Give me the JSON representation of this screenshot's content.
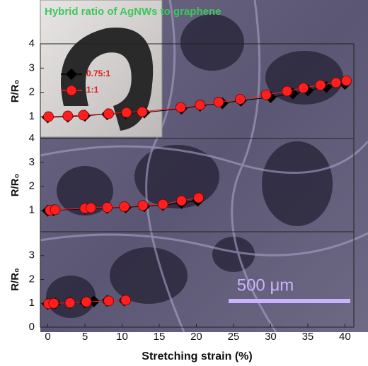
{
  "chart_data": [
    {
      "type": "scatter",
      "title": "Hybrid ratio of AgNWs to graphene",
      "ylabel": "R/R₀",
      "xlim": [
        -1,
        41.2
      ],
      "ylim": [
        0.1,
        4
      ],
      "yticks": [
        1,
        2,
        3,
        4
      ],
      "series": [
        {
          "name": "0.75:1",
          "color": "#000000",
          "marker": "diamond",
          "x": [
            0,
            2.7,
            5,
            8,
            10.5,
            13,
            18,
            20.5,
            23.5,
            26,
            30,
            33,
            35,
            37.5,
            40
          ],
          "values": [
            0.97,
            1.0,
            1.04,
            1.1,
            1.14,
            1.17,
            1.33,
            1.45,
            1.55,
            1.66,
            1.8,
            1.95,
            2.08,
            2.22,
            2.35
          ]
        },
        {
          "name": "1:1",
          "color": "#ff1f1f",
          "marker": "circle",
          "x": [
            0.1,
            2.7,
            4.8,
            8.2,
            10.6,
            12.7,
            17.9,
            20.5,
            23,
            25.9,
            29.4,
            32.2,
            34.4,
            36.7,
            38.8,
            40.2
          ],
          "values": [
            1.0,
            1.03,
            1.06,
            1.12,
            1.17,
            1.2,
            1.38,
            1.48,
            1.6,
            1.72,
            1.9,
            2.05,
            2.18,
            2.3,
            2.4,
            2.48
          ]
        }
      ]
    },
    {
      "type": "scatter",
      "ylabel": "R/R₀",
      "xlim": [
        -1,
        41.2
      ],
      "ylim": [
        0.1,
        4
      ],
      "yticks": [
        1,
        2,
        3,
        4
      ],
      "series": [
        {
          "color": "#000000",
          "marker": "diamond",
          "x": [
            0,
            0.8,
            5,
            8,
            10.5,
            13,
            15.5,
            18,
            20.2
          ],
          "values": [
            0.98,
            1.0,
            1.06,
            1.1,
            1.12,
            1.17,
            1.22,
            1.3,
            1.4
          ]
        },
        {
          "color": "#ff1f1f",
          "marker": "circle",
          "x": [
            0.3,
            1,
            5,
            5.8,
            8,
            10.3,
            12.8,
            15.5,
            18,
            20.3
          ],
          "values": [
            1.0,
            1.02,
            1.08,
            1.1,
            1.12,
            1.15,
            1.2,
            1.25,
            1.4,
            1.52
          ]
        }
      ]
    },
    {
      "type": "scatter",
      "ylabel": "R/R₀",
      "xlabel": "Stretching strain (%)",
      "annotation": "500 μm",
      "xlim": [
        -1,
        41.2
      ],
      "xticks": [
        0,
        5,
        10,
        15,
        20,
        25,
        30,
        35,
        40
      ],
      "ylim": [
        0,
        4
      ],
      "yticks": [
        0,
        1,
        2,
        3
      ],
      "series": [
        {
          "color": "#000000",
          "marker": "diamond",
          "x": [
            0,
            1,
            3,
            5,
            6.2,
            8,
            10.3
          ],
          "values": [
            0.97,
            1.0,
            1.02,
            1.04,
            1.08,
            1.1,
            1.12
          ]
        },
        {
          "color": "#ff1f1f",
          "marker": "circle",
          "x": [
            0.1,
            0.8,
            3,
            5.2,
            8.2,
            10.5
          ],
          "values": [
            0.98,
            1.0,
            1.02,
            1.06,
            1.1,
            1.13
          ]
        }
      ]
    }
  ]
}
